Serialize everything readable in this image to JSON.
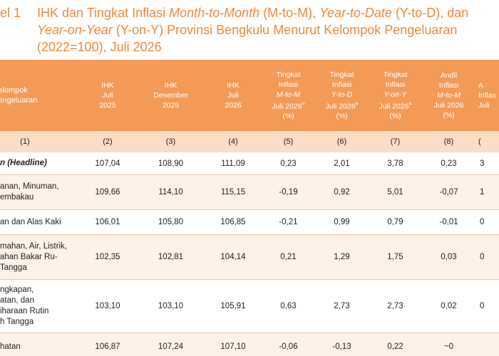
{
  "title": {
    "label": "el 1",
    "line1_pre": "IHK dan Tingkat Inflasi ",
    "line1_mtm": "Month-to-Month",
    "line1_mid": " (M-to-M), ",
    "line1_ytd": "Year-to-Date",
    "line1_end": " (Y-to-D), dan",
    "line2_yoy": "Year-on-Year",
    "line2_rest": " (Y-on-Y) Provinsi Bengkulu Menurut Kelompok Pengeluaran",
    "line3": "(2022=100), Juli 2026"
  },
  "headers": {
    "col1": [
      "Kelompok",
      "Pengeluaran"
    ],
    "col2": [
      "IHK",
      "Juli",
      "2025"
    ],
    "col3": [
      "IHK",
      "Desember",
      "2025"
    ],
    "col4": [
      "IHK",
      "Juli",
      "2026"
    ],
    "col5": {
      "l1": "Tingkat",
      "l2": "Inflasi",
      "l3": "M-to-M",
      "l4": "Juli 2026",
      "l5": "(%)"
    },
    "col6": {
      "l1": "Tingkat",
      "l2": "Inflasi",
      "l3": "Y-to-D",
      "l4": "Juli 2026",
      "l5": "(%)"
    },
    "col7": {
      "l1": "Tingkat",
      "l2": "Inflasi",
      "l3": "Y-on-Y",
      "l4": "Juli 2026",
      "l5": "(%)"
    },
    "col8": {
      "l1": "Andil",
      "l2": "Inflasi",
      "l3": "M-to-M",
      "l4": "Juli 2026",
      "l5": "(%)"
    },
    "col9": {
      "l1": "A",
      "l2": "Inflas",
      "l3": "Juli",
      "l4": ""
    },
    "superscript": "¤"
  },
  "column_numbers": [
    "(1)",
    "(2)",
    "(3)",
    "(4)",
    "(5)",
    "(6)",
    "(7)",
    "(8)",
    "("
  ],
  "rows": [
    {
      "name_lines": [
        "n (Headline)"
      ],
      "ihk_jul25": "107,04",
      "ihk_des25": "108,90",
      "ihk_jul26": "111,09",
      "mtm": "0,23",
      "ytd": "2,01",
      "yoy": "3,78",
      "andil": "0,23",
      "last": "3"
    },
    {
      "name_lines": [
        "anan, Minuman,",
        "embakau"
      ],
      "ihk_jul25": "109,66",
      "ihk_des25": "114,10",
      "ihk_jul26": "115,15",
      "mtm": "-0,19",
      "ytd": "0,92",
      "yoy": "5,01",
      "andil": "-0,07",
      "last": "1"
    },
    {
      "name_lines": [
        "an dan Alas Kaki"
      ],
      "ihk_jul25": "106,01",
      "ihk_des25": "105,80",
      "ihk_jul26": "106,85",
      "mtm": "-0,21",
      "ytd": "0,99",
      "yoy": "0,79",
      "andil": "-0,01",
      "last": "0"
    },
    {
      "name_lines": [
        "mahan, Air, Listrik,",
        "ahan Bakar Ru-",
        "Tangga"
      ],
      "ihk_jul25": "102,35",
      "ihk_des25": "102,81",
      "ihk_jul26": "104,14",
      "mtm": "0,21",
      "ytd": "1,29",
      "yoy": "1,75",
      "andil": "0,03",
      "last": "0"
    },
    {
      "name_lines": [
        "ngkapan,",
        "atan, dan",
        "iharaan Rutin",
        "h Tangga"
      ],
      "ihk_jul25": "103,10",
      "ihk_des25": "103,10",
      "ihk_jul26": "105,91",
      "mtm": "0,63",
      "ytd": "2,73",
      "yoy": "2,73",
      "andil": "0,02",
      "last": "0"
    },
    {
      "name_lines": [
        "hatan"
      ],
      "ihk_jul25": "106,87",
      "ihk_des25": "107,24",
      "ihk_jul26": "107,10",
      "mtm": "-0,06",
      "ytd": "-0,13",
      "yoy": "0,22",
      "andil": "~0",
      "last": ""
    }
  ]
}
